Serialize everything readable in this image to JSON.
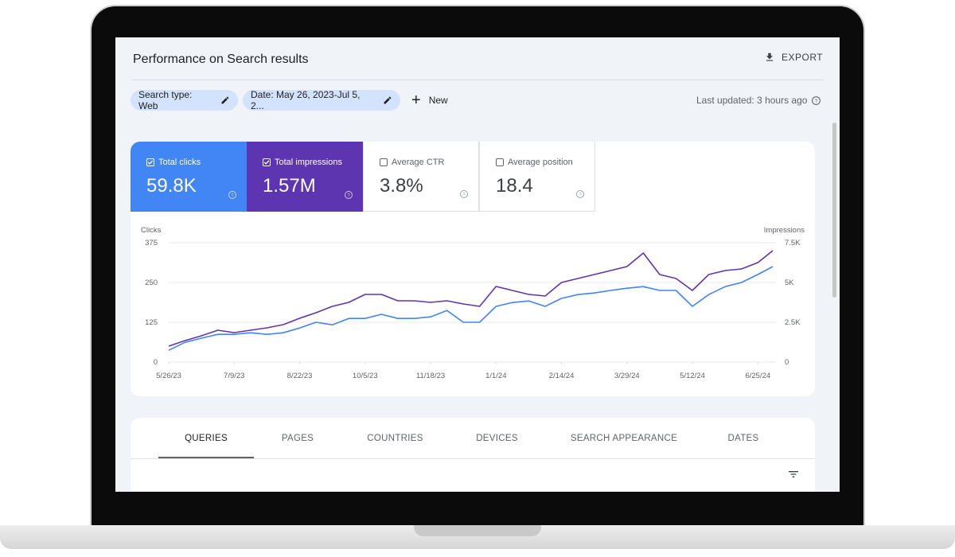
{
  "header": {
    "title": "Performance on Search results",
    "export": "EXPORT"
  },
  "filters": {
    "chips": [
      "Search type: Web",
      "Date: May 26, 2023-Jul 5, 2..."
    ],
    "new": "New",
    "last_updated": "Last updated: 3 hours ago"
  },
  "metrics": [
    {
      "label": "Total clicks",
      "value": "59.8K",
      "color": "#4285f4",
      "checked": true
    },
    {
      "label": "Total impressions",
      "value": "1.57M",
      "color": "#5e35b1",
      "checked": true
    },
    {
      "label": "Average CTR",
      "value": "3.8%",
      "checked": false
    },
    {
      "label": "Average position",
      "value": "18.4",
      "checked": false
    }
  ],
  "chart_data": {
    "type": "line",
    "ylabel": "Clicks",
    "y2label": "Impressions",
    "x": [
      "5/26/23",
      "6/6/23",
      "6/17/23",
      "6/28/23",
      "7/9/23",
      "7/20/23",
      "7/31/23",
      "8/11/23",
      "8/22/23",
      "9/2/23",
      "9/13/23",
      "9/24/23",
      "10/5/23",
      "10/16/23",
      "10/27/23",
      "11/7/23",
      "11/18/23",
      "11/29/23",
      "12/10/23",
      "12/21/23",
      "1/1/24",
      "1/12/24",
      "1/23/24",
      "2/3/24",
      "2/14/24",
      "2/25/24",
      "3/7/24",
      "3/18/24",
      "3/29/24",
      "4/9/24",
      "4/20/24",
      "5/1/24",
      "5/12/24",
      "5/23/24",
      "6/3/24",
      "6/14/24",
      "6/25/24",
      "7/5/24"
    ],
    "xticks": [
      "5/26/23",
      "7/9/23",
      "8/22/23",
      "10/5/23",
      "11/18/23",
      "1/1/24",
      "2/14/24",
      "3/29/24",
      "5/12/24",
      "6/25/24"
    ],
    "ylim": [
      0,
      375
    ],
    "yticks": [
      0,
      125,
      250,
      375
    ],
    "y2lim": [
      0,
      7500
    ],
    "y2ticks": [
      0,
      {
        "value": 2500,
        "label": "2.5K"
      },
      {
        "value": 5000,
        "label": "5K"
      },
      {
        "value": 7500,
        "label": "7.5K"
      }
    ],
    "grid": true,
    "series": [
      {
        "name": "Clicks",
        "color": "#4285f4",
        "axis": "y",
        "values": [
          37,
          62,
          75,
          87,
          87,
          92,
          87,
          92,
          107,
          125,
          117,
          137,
          137,
          150,
          137,
          137,
          142,
          162,
          125,
          125,
          175,
          187,
          192,
          175,
          200,
          212,
          217,
          225,
          232,
          237,
          225,
          225,
          175,
          212,
          237,
          250,
          275,
          300
        ]
      },
      {
        "name": "Impressions",
        "color": "#5e35b1",
        "axis": "y2",
        "values": [
          1000,
          1350,
          1650,
          2000,
          1850,
          2000,
          2150,
          2350,
          2750,
          3100,
          3500,
          3750,
          4250,
          4250,
          3850,
          3850,
          3750,
          3850,
          3650,
          3500,
          4750,
          4500,
          4250,
          4150,
          5000,
          5250,
          5500,
          5750,
          6000,
          6850,
          5500,
          5250,
          4500,
          5500,
          5750,
          5850,
          6250,
          7000
        ]
      }
    ]
  },
  "tabs": [
    "QUERIES",
    "PAGES",
    "COUNTRIES",
    "DEVICES",
    "SEARCH APPEARANCE",
    "DATES"
  ]
}
